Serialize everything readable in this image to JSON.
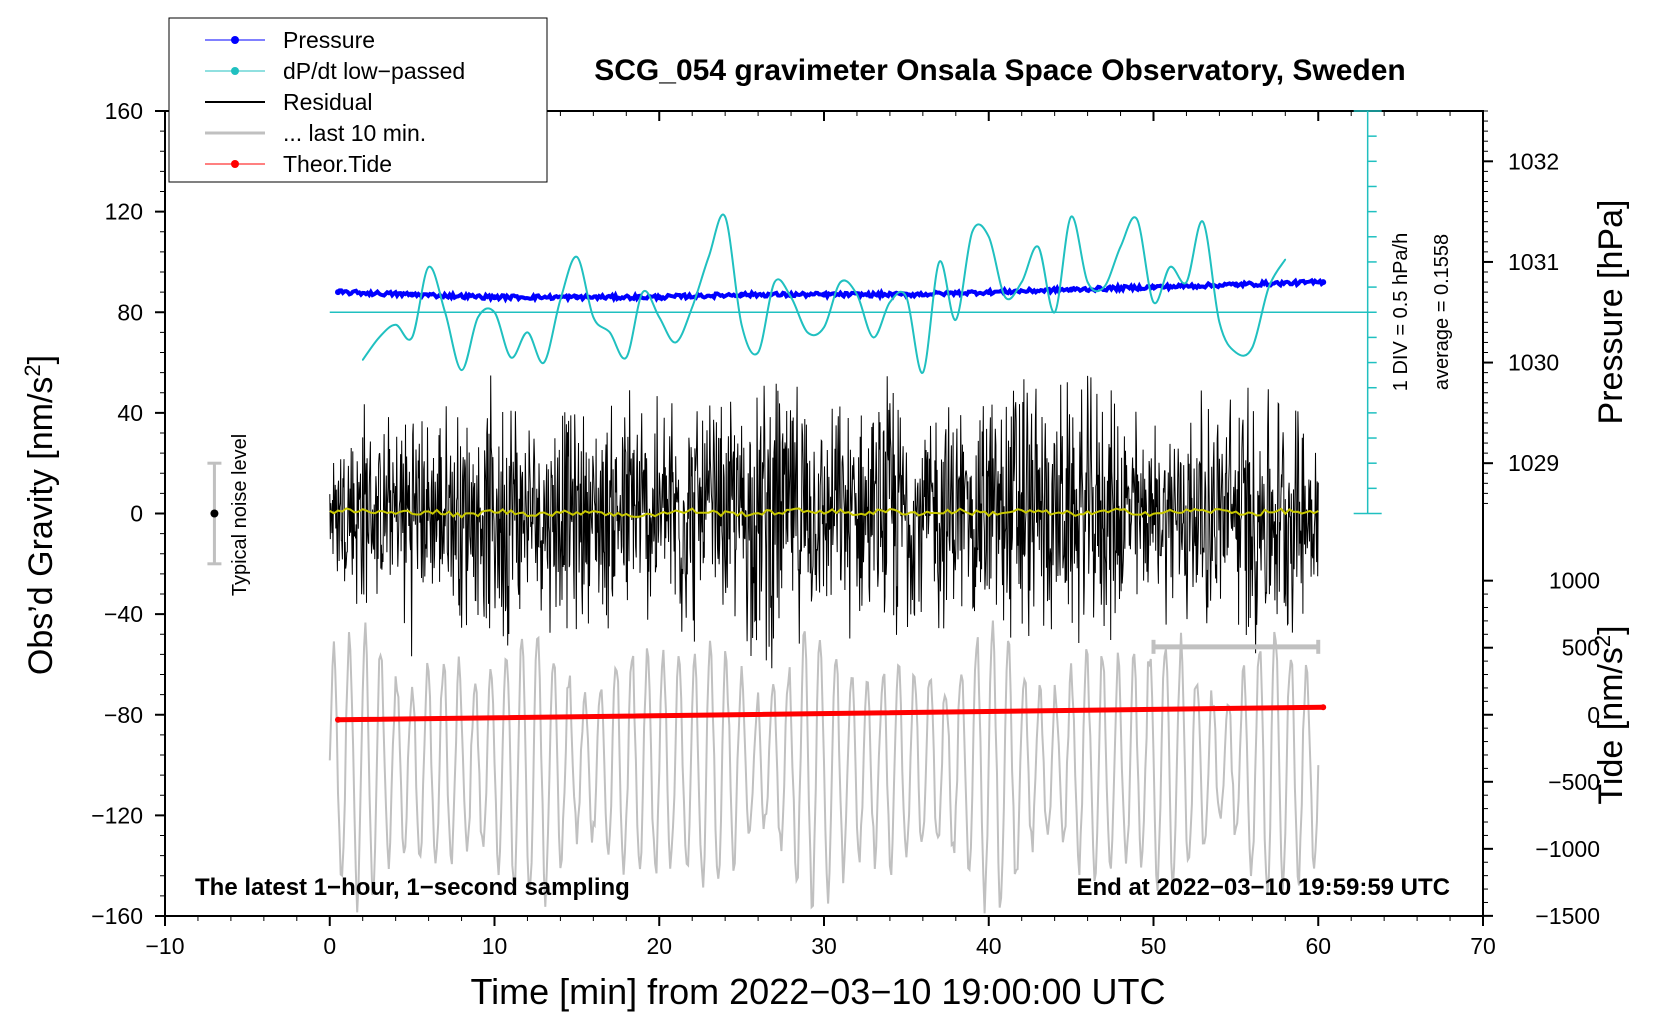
{
  "chart_data": {
    "type": "line",
    "title": "SCG_054 gravimeter Onsala Space Observatory, Sweden",
    "xlabel": "Time [min] from 2022−03−10 19:00:00 UTC",
    "ylabel": "Obs’d Gravity [nm/s²]",
    "ylabel_base": "Obs’d Gravity [nm/s",
    "ylabel_sup": "2",
    "ylabel_end": "]",
    "y2label_pressure": "Pressure [hPa]",
    "y2label_tide_base": "Tide [nm/s",
    "y2label_tide_sup": "2",
    "y2label_tide_end": "]",
    "xlim": [
      -10,
      70
    ],
    "ylim": [
      -160,
      160
    ],
    "x_ticks": [
      -10,
      0,
      10,
      20,
      30,
      40,
      50,
      60,
      70
    ],
    "x_tick_labels": [
      "−10",
      "0",
      "10",
      "20",
      "30",
      "40",
      "50",
      "60",
      "70"
    ],
    "y_ticks": [
      -160,
      -120,
      -80,
      -40,
      0,
      40,
      80,
      120,
      160
    ],
    "y_tick_labels": [
      "−160",
      "−120",
      "−80",
      "−40",
      "0",
      "40",
      "80",
      "120",
      "160"
    ],
    "pressure_axis": {
      "ticks": [
        1029,
        1030,
        1031,
        1032
      ],
      "tick_labels": [
        "1029",
        "1030",
        "1031",
        "1032"
      ],
      "reference_gravity": 80,
      "reference_pressure": 1030.5,
      "gravity_per_hPa": 40
    },
    "tide_axis": {
      "ticks": [
        -1500,
        -1000,
        -500,
        0,
        500,
        1000
      ],
      "tick_labels": [
        "−1500",
        "−1000",
        "−500",
        "0",
        "500",
        "1000"
      ],
      "zero_gravity": -80,
      "gravity_per_nms2": 0.0533
    },
    "dpdt_scale": {
      "label": "1 DIV = 0.5 hPa/h",
      "average_label": "average = 0.1558",
      "x": 63,
      "bottom": 0,
      "top": 160,
      "divisions": 16
    },
    "noise_bar": {
      "label": "Typical noise level",
      "x": -7,
      "low": -20,
      "high": 20,
      "center": 0
    },
    "last10_bracket": {
      "from": 50,
      "to": 60,
      "y": -53
    },
    "footer_left": "The latest 1−hour, 1−second sampling",
    "footer_right": "End at 2022−03−10 19:59:59 UTC",
    "legend": [
      {
        "label": "Pressure",
        "color": "#0000ff",
        "marker": true
      },
      {
        "label": "dP/dt low−passed",
        "color": "#20c0c0",
        "marker": true
      },
      {
        "label": "Residual",
        "color": "#000000",
        "marker": false
      },
      {
        "label": "... last 10 min.",
        "color": "#c0c0c0",
        "marker": false
      },
      {
        "label": "Theor.Tide",
        "color": "#ff0000",
        "marker": true
      }
    ],
    "series": [
      {
        "name": "Pressure",
        "color": "#0000ff",
        "x": [
          0.5,
          5,
          10,
          15,
          20,
          25,
          30,
          35,
          40,
          45,
          50,
          55,
          60.3
        ],
        "values": [
          88,
          87,
          86,
          86,
          86,
          87,
          87,
          87,
          88,
          89,
          90,
          91,
          92
        ]
      },
      {
        "name": "dP/dt low−passed",
        "color": "#20c0c0",
        "x": [
          2,
          3,
          4,
          5,
          6,
          7,
          8,
          9,
          10,
          11,
          12,
          13,
          14,
          15,
          16,
          17,
          18,
          19,
          20,
          21,
          22,
          23,
          24,
          25,
          26,
          27,
          28,
          29,
          30,
          31,
          32,
          33,
          34,
          35,
          36,
          37,
          38,
          39,
          40,
          41,
          42,
          43,
          44,
          45,
          46,
          47,
          48,
          49,
          50,
          51,
          52,
          53,
          54,
          55,
          56,
          57,
          58
        ],
        "values": [
          61,
          70,
          75,
          70,
          98,
          80,
          57,
          78,
          80,
          62,
          72,
          60,
          85,
          102,
          78,
          72,
          62,
          88,
          78,
          68,
          82,
          102,
          118,
          75,
          64,
          92,
          86,
          72,
          74,
          92,
          87,
          70,
          84,
          86,
          56,
          100,
          77,
          112,
          110,
          86,
          92,
          106,
          80,
          118,
          92,
          90,
          106,
          117,
          84,
          98,
          92,
          116,
          76,
          64,
          66,
          90,
          101
        ]
      },
      {
        "name": "Residual",
        "color": "#000000",
        "x": [
          0,
          60
        ],
        "values": [
          0,
          0
        ],
        "envelope_nm_s2": [
          [
            0,
            30
          ],
          [
            2,
            55
          ],
          [
            3,
            35
          ],
          [
            5,
            60
          ],
          [
            6,
            40
          ],
          [
            8,
            55
          ],
          [
            9,
            45
          ],
          [
            10,
            60
          ],
          [
            11,
            65
          ],
          [
            12,
            40
          ],
          [
            14,
            55
          ],
          [
            16,
            45
          ],
          [
            18,
            60
          ],
          [
            20,
            50
          ],
          [
            21,
            65
          ],
          [
            22,
            55
          ],
          [
            24,
            50
          ],
          [
            26,
            65
          ],
          [
            27,
            70
          ],
          [
            28,
            60
          ],
          [
            30,
            45
          ],
          [
            32,
            55
          ],
          [
            33,
            45
          ],
          [
            34,
            65
          ],
          [
            36,
            50
          ],
          [
            38,
            55
          ],
          [
            39,
            45
          ],
          [
            40,
            60
          ],
          [
            41,
            65
          ],
          [
            42,
            70
          ],
          [
            44,
            55
          ],
          [
            46,
            60
          ],
          [
            48,
            55
          ],
          [
            50,
            40
          ],
          [
            52,
            55
          ],
          [
            54,
            50
          ],
          [
            56,
            65
          ],
          [
            57,
            60
          ],
          [
            59,
            50
          ],
          [
            60,
            45
          ]
        ],
        "running_mean_color": "#c8c800",
        "running_mean": [
          1,
          1,
          0,
          1,
          -1,
          1,
          0,
          0,
          1,
          -1,
          0,
          1,
          0,
          0,
          1,
          1,
          0,
          1,
          0,
          1,
          0,
          1,
          0,
          0,
          1,
          0,
          1,
          1,
          0,
          1,
          0
        ]
      },
      {
        "name": "... last 10 min.",
        "color": "#c0c0c0",
        "x": [
          0,
          60
        ],
        "center": -100,
        "amplitude_range": [
          25,
          55
        ]
      },
      {
        "name": "Theor.Tide",
        "color": "#ff0000",
        "x": [
          0.5,
          60.3
        ],
        "values": [
          -82,
          -77
        ]
      }
    ]
  }
}
